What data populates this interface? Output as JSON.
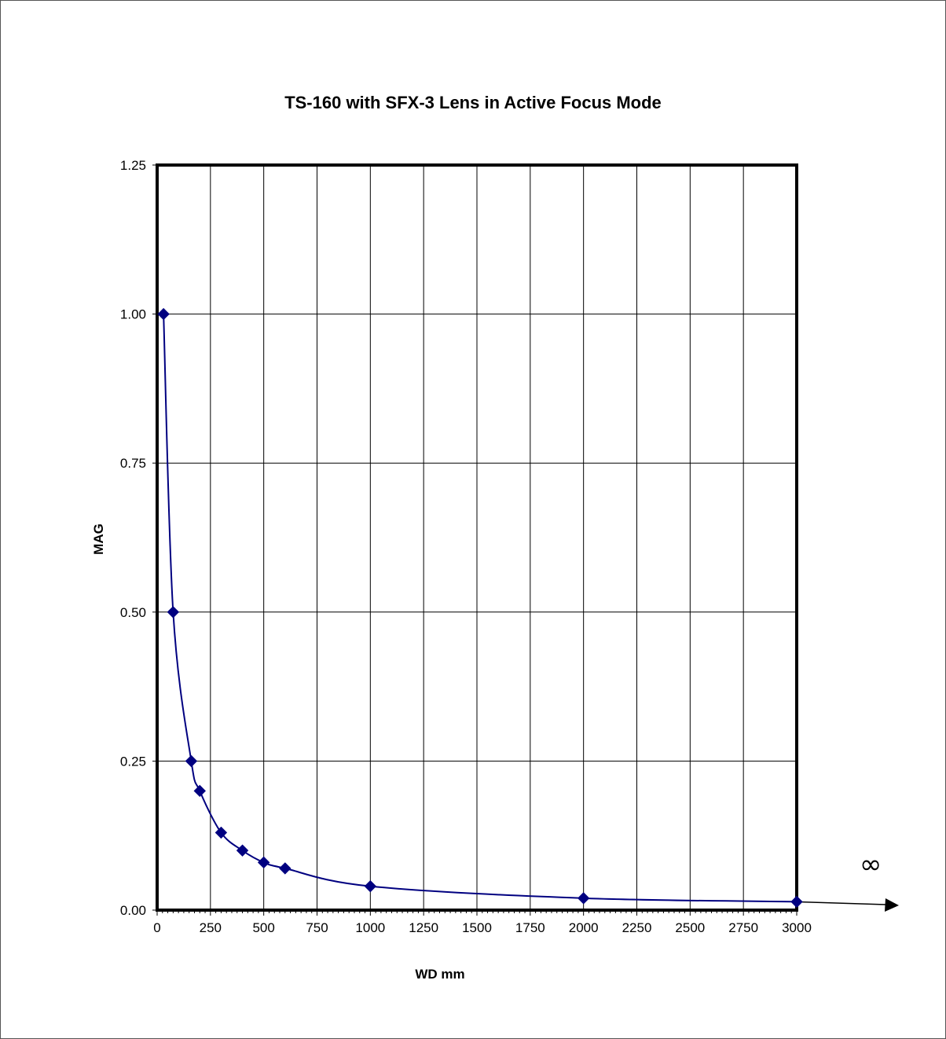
{
  "chart_data": {
    "type": "scatter",
    "title": "TS-160 with SFX-3 Lens in Active Focus Mode",
    "xlabel": "WD mm",
    "ylabel": "MAG",
    "xlim": [
      0,
      3000
    ],
    "ylim": [
      0,
      1.25
    ],
    "x_ticks": [
      "0",
      "250",
      "500",
      "750",
      "1000",
      "1250",
      "1500",
      "1750",
      "2000",
      "2250",
      "2500",
      "2750",
      "3000"
    ],
    "y_ticks": [
      "0.00",
      "0.25",
      "0.50",
      "0.75",
      "1.00",
      "1.25"
    ],
    "grid": true,
    "legend": "none",
    "annotation": "∞",
    "series": [
      {
        "x": [
          30,
          75,
          160,
          200,
          300,
          400,
          500,
          600,
          1000,
          2000,
          3000
        ],
        "y": [
          1.0,
          0.5,
          0.25,
          0.2,
          0.13,
          0.1,
          0.08,
          0.07,
          0.04,
          0.02,
          0.014
        ],
        "color": "#000080"
      }
    ]
  }
}
